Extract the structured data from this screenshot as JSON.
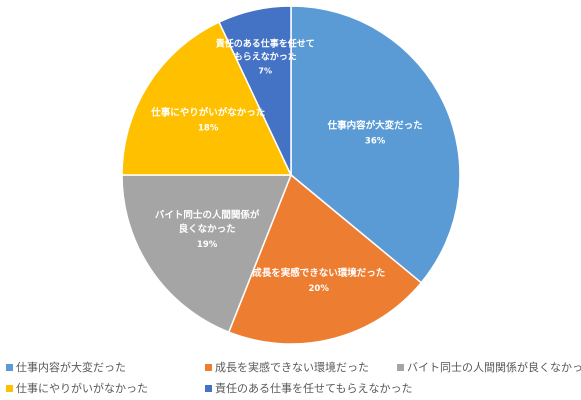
{
  "chart_data": {
    "type": "pie",
    "title": "",
    "slices": [
      {
        "label": "仕事内容が大変だった",
        "value": 36,
        "value_label": "36%",
        "color": "#5B9BD5"
      },
      {
        "label": "成長を実感できない環境だった",
        "value": 20,
        "value_label": "20%",
        "color": "#ED7D31"
      },
      {
        "label": "バイト同士の人間関係が良くなかった",
        "value": 19,
        "value_label": "19%",
        "color": "#A5A5A5"
      },
      {
        "label": "仕事にやりがいがなかった",
        "value": 18,
        "value_label": "18%",
        "color": "#FFC000"
      },
      {
        "label": "責任のある仕事を任せてもらえなかった",
        "value": 7,
        "value_label": "7%",
        "color": "#4472C4"
      }
    ],
    "in_slice_labels": [
      [
        "仕事内容が大変だった"
      ],
      [
        "成長を実感できない環境だった"
      ],
      [
        "バイト同士の人間関係が",
        "良くなかった"
      ],
      [
        "仕事にやりがいがなかった"
      ],
      [
        "責任のある仕事を任せて",
        "もらえなかった"
      ]
    ],
    "legend_position": "bottom"
  }
}
